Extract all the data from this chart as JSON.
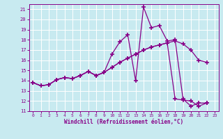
{
  "xlabel": "Windchill (Refroidissement éolien,°C)",
  "xlim": [
    -0.5,
    23.5
  ],
  "ylim": [
    11,
    21.5
  ],
  "yticks": [
    11,
    12,
    13,
    14,
    15,
    16,
    17,
    18,
    19,
    20,
    21
  ],
  "xticks": [
    0,
    1,
    2,
    3,
    4,
    5,
    6,
    7,
    8,
    9,
    10,
    11,
    12,
    13,
    14,
    15,
    16,
    17,
    18,
    19,
    20,
    21,
    22,
    23
  ],
  "bg_color": "#c8eaf0",
  "line_color": "#880088",
  "grid_color": "#ffffff",
  "series1_x": [
    0,
    1,
    2,
    3,
    4,
    5,
    6,
    7,
    8,
    9,
    10,
    11,
    12,
    13,
    14,
    15,
    16,
    17,
    18,
    19,
    20,
    21,
    22
  ],
  "series1_y": [
    13.8,
    13.5,
    13.6,
    14.1,
    14.3,
    14.2,
    14.5,
    14.9,
    14.5,
    14.8,
    16.6,
    17.8,
    18.5,
    14.0,
    21.2,
    19.2,
    19.4,
    17.9,
    18.0,
    12.2,
    11.5,
    11.8,
    11.8
  ],
  "series2_x": [
    0,
    1,
    2,
    3,
    4,
    5,
    6,
    7,
    8,
    9,
    10,
    11,
    12,
    13,
    14,
    15,
    16,
    17,
    18,
    19,
    20,
    21,
    22
  ],
  "series2_y": [
    13.8,
    13.5,
    13.6,
    14.1,
    14.3,
    14.2,
    14.5,
    14.9,
    14.5,
    14.8,
    15.3,
    15.8,
    16.2,
    16.6,
    17.0,
    17.3,
    17.5,
    17.7,
    17.9,
    17.6,
    17.0,
    16.0,
    15.8
  ],
  "series3_x": [
    0,
    1,
    2,
    3,
    4,
    5,
    6,
    7,
    8,
    9,
    10,
    11,
    12,
    13,
    14,
    15,
    16,
    17,
    18,
    19,
    20,
    21,
    22
  ],
  "series3_y": [
    13.8,
    13.5,
    13.6,
    14.1,
    14.3,
    14.2,
    14.5,
    14.9,
    14.5,
    14.8,
    15.3,
    15.8,
    16.2,
    16.6,
    17.0,
    17.3,
    17.5,
    17.7,
    12.2,
    12.1,
    12.0,
    11.5,
    11.8
  ]
}
